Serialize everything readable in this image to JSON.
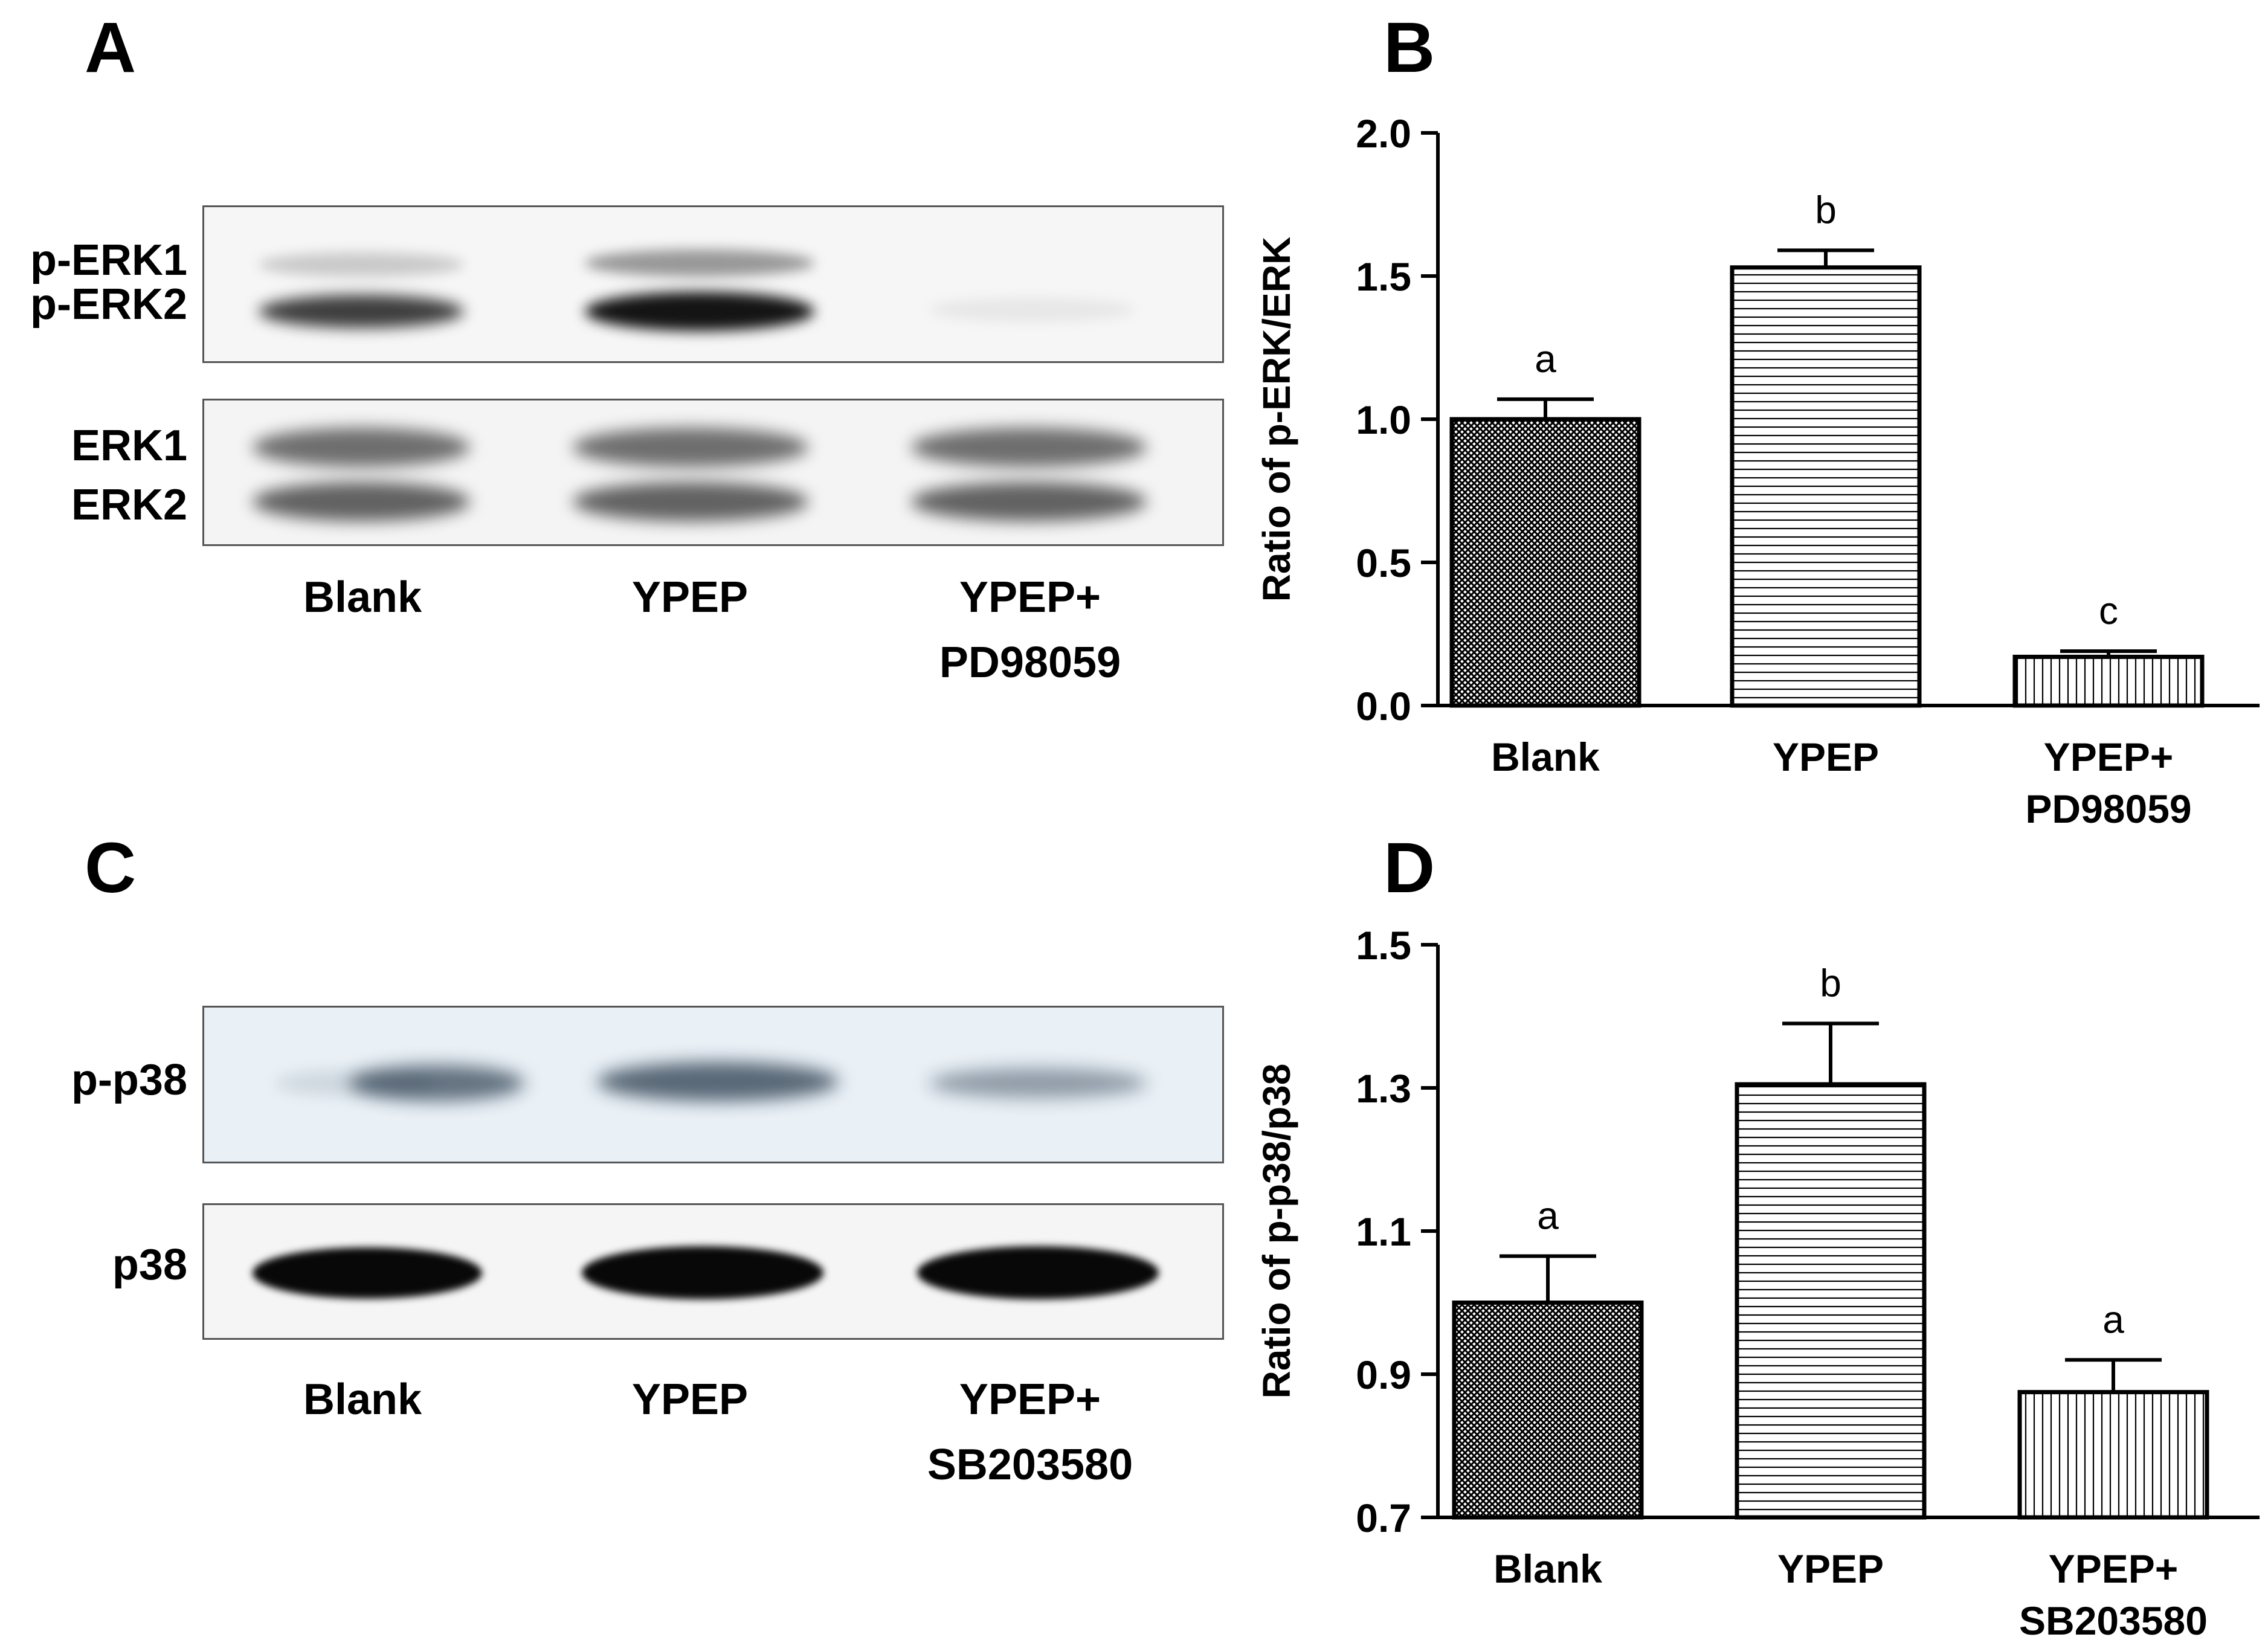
{
  "panels": {
    "a": {
      "letter": "A",
      "blot_labels": {
        "top_band1": "p-ERK1",
        "top_band2": "p-ERK2",
        "bottom_band1": "ERK1",
        "bottom_band2": "ERK2"
      },
      "lanes": [
        {
          "line1": "Blank",
          "line2": ""
        },
        {
          "line1": "YPEP",
          "line2": ""
        },
        {
          "line1": "YPEP+",
          "line2": "PD98059"
        }
      ]
    },
    "b": {
      "letter": "B"
    },
    "c": {
      "letter": "C",
      "blot_labels": {
        "top": "p-p38",
        "bottom": "p38"
      },
      "lanes": [
        {
          "line1": "Blank",
          "line2": ""
        },
        {
          "line1": "YPEP",
          "line2": ""
        },
        {
          "line1": "YPEP+",
          "line2": "SB203580"
        }
      ]
    },
    "d": {
      "letter": "D"
    }
  },
  "chart_data": [
    {
      "panel": "B",
      "type": "bar",
      "categories": [
        "Blank",
        "YPEP",
        "YPEP+\nPD98059"
      ],
      "values": [
        1.0,
        1.53,
        0.17
      ],
      "errors": [
        0.07,
        0.06,
        0.02
      ],
      "significance": [
        "a",
        "b",
        "c"
      ],
      "patterns": [
        "crosshatch",
        "horizontal",
        "vertical"
      ],
      "ylabel": "Ratio of p-ERK/ERK",
      "ylim": [
        0.0,
        2.0
      ],
      "yticks": [
        "0.0",
        "0.5",
        "1.0",
        "1.5",
        "2.0"
      ]
    },
    {
      "panel": "D",
      "type": "bar",
      "categories": [
        "Blank",
        "YPEP",
        "YPEP+\nSB203580"
      ],
      "values": [
        1.0,
        1.305,
        0.875
      ],
      "errors": [
        0.065,
        0.085,
        0.045
      ],
      "significance": [
        "a",
        "b",
        "a"
      ],
      "patterns": [
        "crosshatch",
        "horizontal",
        "vertical"
      ],
      "ylabel": "Ratio of p-p38/p38",
      "ylim": [
        0.7,
        1.5
      ],
      "yticks": [
        "0.7",
        "0.9",
        "1.1",
        "1.3",
        "1.5"
      ]
    }
  ]
}
